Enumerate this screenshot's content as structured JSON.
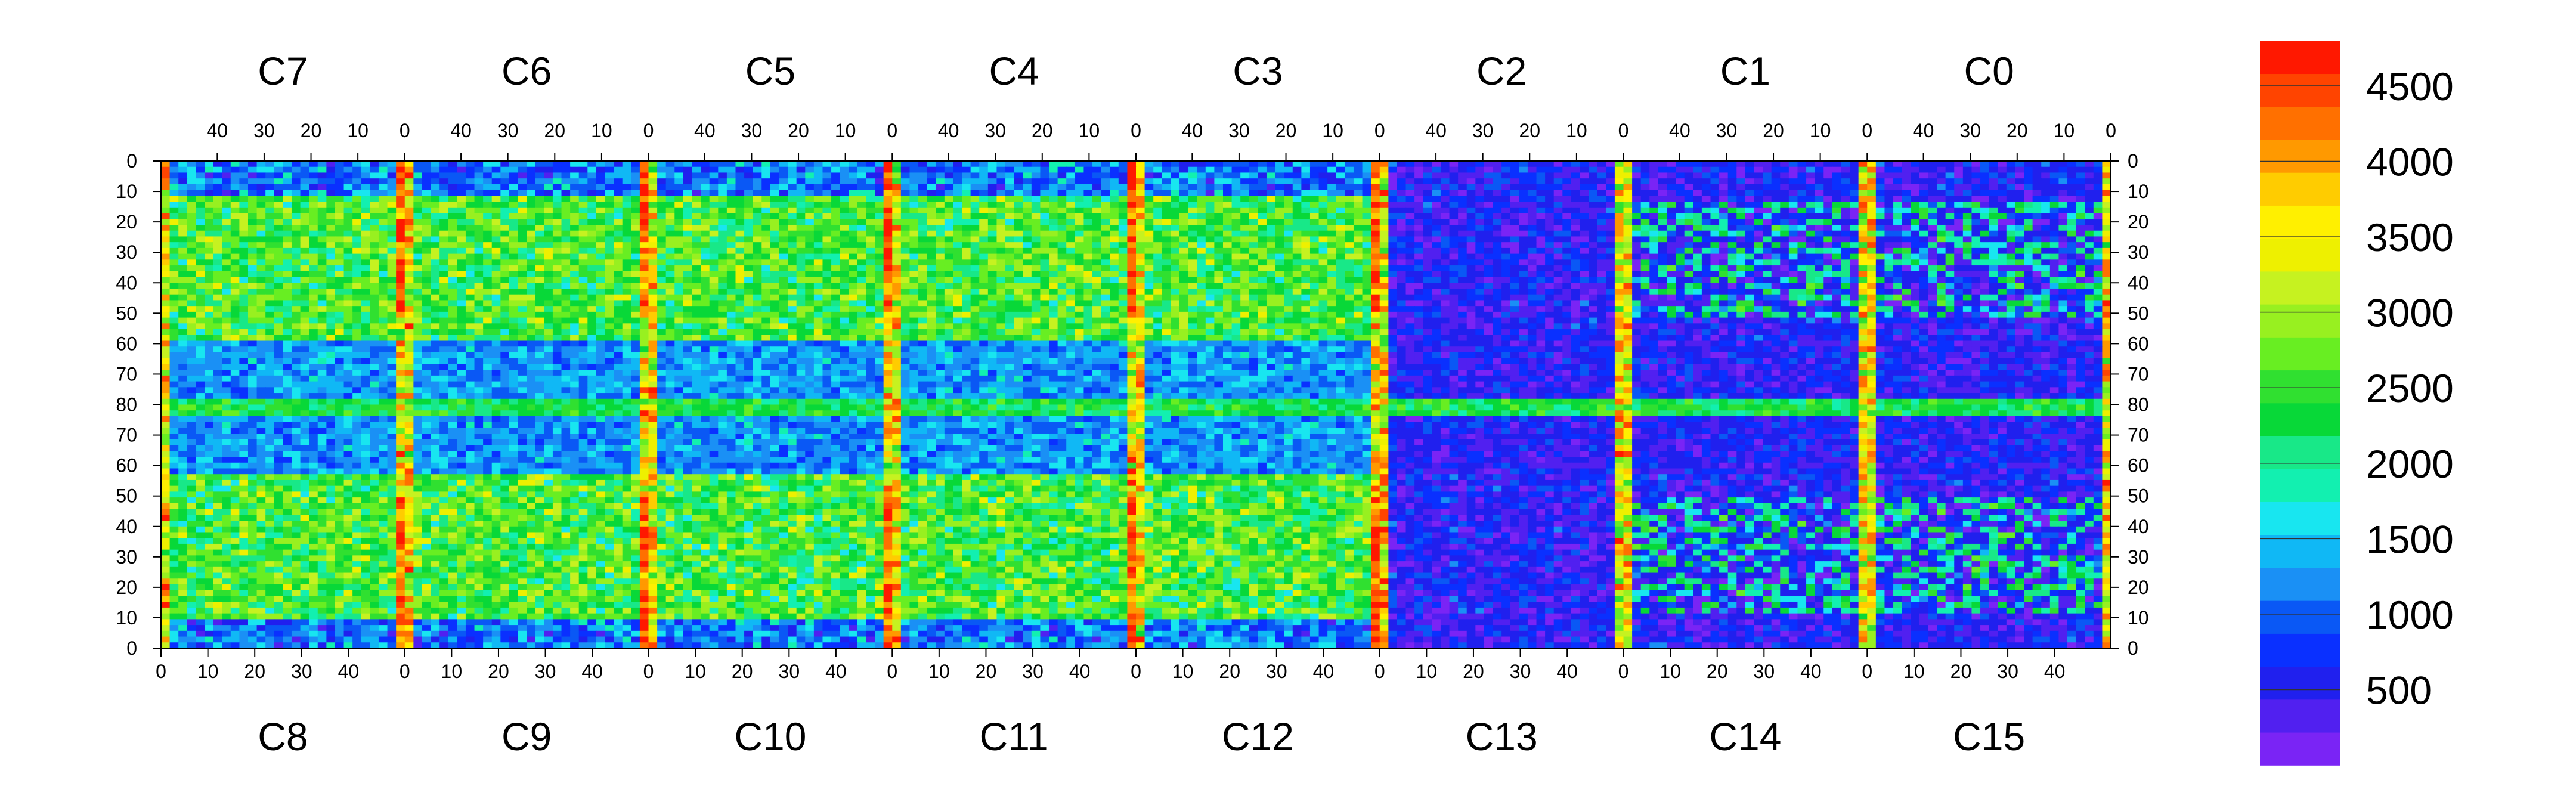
{
  "chart_data": {
    "type": "heatmap",
    "title": "",
    "xlabel": "",
    "ylabel": "",
    "top_panels": [
      "C7",
      "C6",
      "C5",
      "C4",
      "C3",
      "C2",
      "C1",
      "C0"
    ],
    "bottom_panels": [
      "C8",
      "C9",
      "C10",
      "C11",
      "C12",
      "C13",
      "C14",
      "C15"
    ],
    "top_x_ticks": [
      "40",
      "30",
      "20",
      "10",
      "0"
    ],
    "top_x_range": [
      52,
      0
    ],
    "bottom_x_ticks": [
      "0",
      "10",
      "20",
      "30",
      "40"
    ],
    "bottom_x_range": [
      0,
      52
    ],
    "y_ticks_upper": [
      "0",
      "10",
      "20",
      "30",
      "40",
      "50",
      "60",
      "70",
      "80"
    ],
    "y_ticks_lower": [
      "70",
      "60",
      "50",
      "40",
      "30",
      "20",
      "10",
      "0"
    ],
    "y_range_upper": [
      0,
      80
    ],
    "y_range_lower": [
      80,
      0
    ],
    "colorbar": {
      "ticks": [
        "500",
        "1000",
        "1500",
        "2000",
        "2500",
        "3000",
        "3500",
        "4000",
        "4500"
      ],
      "range": [
        0,
        4800
      ],
      "colors": [
        "#7a24f5",
        "#5120f0",
        "#2020ee",
        "#0a30ff",
        "#0a58f5",
        "#1a90f5",
        "#10b8f5",
        "#18e6f0",
        "#12f0b0",
        "#18e888",
        "#08d838",
        "#30e030",
        "#68ee22",
        "#98f020",
        "#c6f220",
        "#eef000",
        "#fff000",
        "#ffcc00",
        "#ff9900",
        "#ff7000",
        "#ff4400",
        "#ff1800"
      ]
    },
    "grid": false,
    "legend_placement": "right"
  }
}
